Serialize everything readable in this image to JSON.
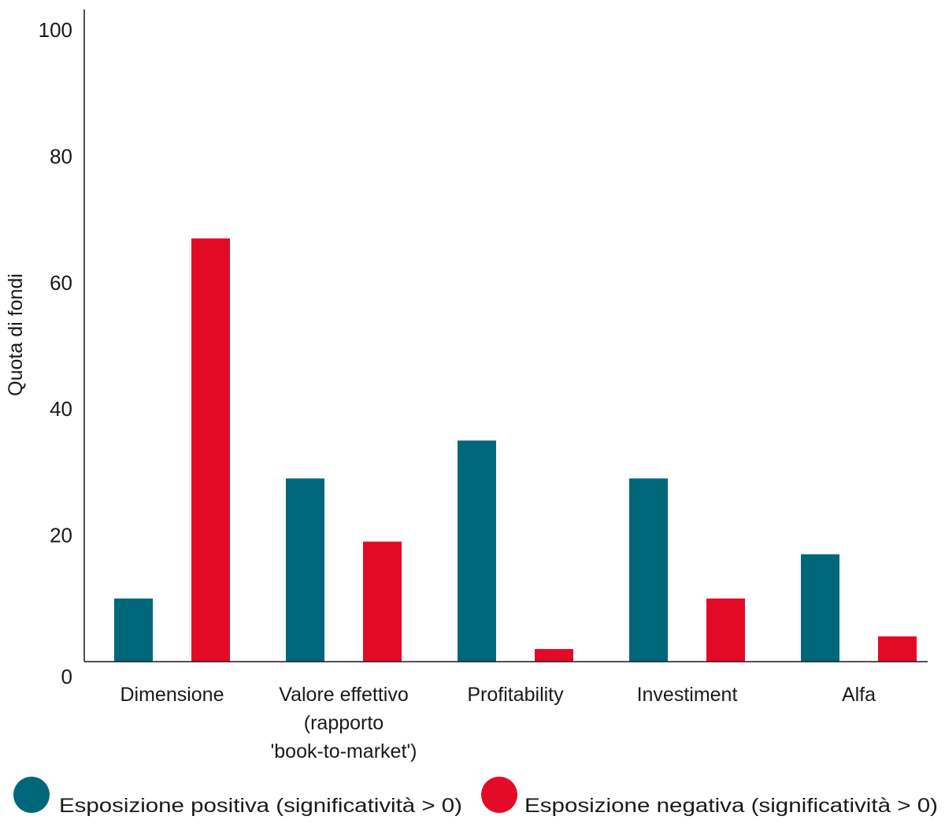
{
  "chart_data": {
    "type": "bar",
    "title": "",
    "xlabel": "",
    "ylabel": "Quota di fondi",
    "ylim": [
      0,
      100
    ],
    "yticks": [
      0,
      20,
      40,
      60,
      80,
      100
    ],
    "grid": false,
    "legend_position": "bottom",
    "categories": [
      [
        "Dimensione"
      ],
      [
        "Valore effettivo",
        "(rapporto",
        "'book-to-market')"
      ],
      [
        "Profitability"
      ],
      [
        "Investiment"
      ],
      [
        "Alfa"
      ]
    ],
    "series": [
      {
        "name": "Esposizione positiva (significatività > 0)",
        "color": "#00677a",
        "values": [
          10,
          29,
          35,
          29,
          17
        ]
      },
      {
        "name": "Esposizione negativa (significatività > 0)",
        "color": "#e30a28",
        "values": [
          67,
          19,
          2,
          10,
          4
        ]
      }
    ]
  }
}
